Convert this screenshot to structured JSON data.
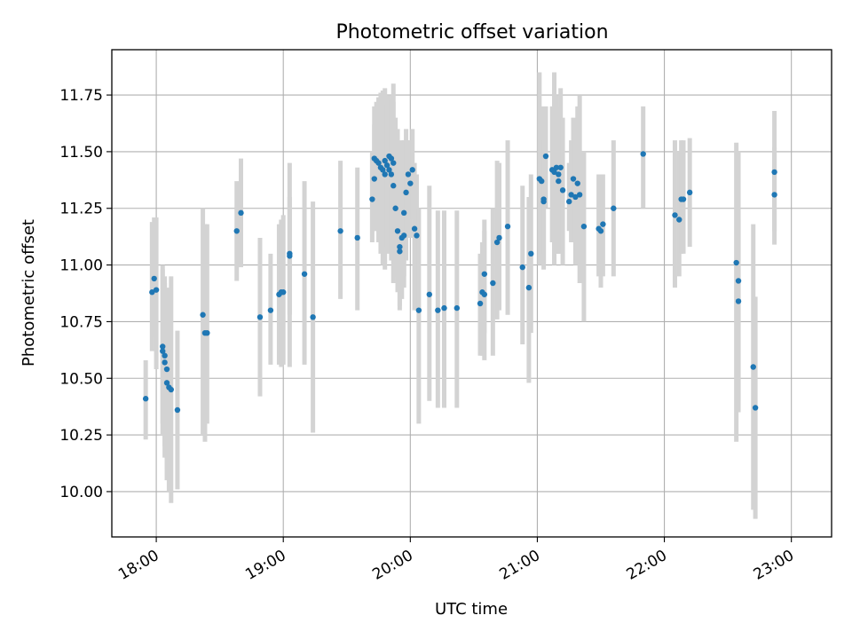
{
  "chart_data": {
    "type": "scatter",
    "title": "Photometric offset variation",
    "xlabel": "UTC time",
    "ylabel": "Photometric offset",
    "x_unit": "UTC",
    "xlim": [
      "17:39",
      "23:19"
    ],
    "ylim": [
      9.8,
      11.95
    ],
    "xticks": [
      "18:00",
      "19:00",
      "20:00",
      "21:00",
      "22:00",
      "23:00"
    ],
    "yticks": [
      10.0,
      10.25,
      10.5,
      10.75,
      11.0,
      11.25,
      11.5,
      11.75
    ],
    "ytick_labels": [
      "10.00",
      "10.25",
      "10.50",
      "10.75",
      "11.00",
      "11.25",
      "11.50",
      "11.75"
    ],
    "grid": true,
    "colors": {
      "point": "#1f77b4",
      "errorbar": "#d3d3d3"
    },
    "series": [
      {
        "points": [
          [
            "17:55",
            10.41,
            10.58,
            10.23
          ],
          [
            "17:58",
            10.88,
            11.19,
            10.62
          ],
          [
            "17:59",
            10.94,
            11.21,
            10.68
          ],
          [
            "18:00",
            10.89,
            11.21,
            10.54
          ],
          [
            "18:03",
            10.64,
            11.0,
            10.3
          ],
          [
            "18:03",
            10.62,
            10.98,
            10.25
          ],
          [
            "18:04",
            10.6,
            10.95,
            10.2
          ],
          [
            "18:04",
            10.57,
            10.92,
            10.15
          ],
          [
            "18:05",
            10.54,
            10.9,
            10.1
          ],
          [
            "18:05",
            10.48,
            10.85,
            10.05
          ],
          [
            "18:06",
            10.46,
            10.8,
            10.0
          ],
          [
            "18:07",
            10.45,
            10.95,
            9.95
          ],
          [
            "18:10",
            10.36,
            10.71,
            10.01
          ],
          [
            "18:22",
            10.78,
            11.25,
            10.25
          ],
          [
            "18:23",
            10.7,
            11.18,
            10.22
          ],
          [
            "18:24",
            10.7,
            11.18,
            10.3
          ],
          [
            "18:38",
            11.15,
            11.37,
            10.93
          ],
          [
            "18:40",
            11.23,
            11.47,
            10.99
          ],
          [
            "18:49",
            10.77,
            11.12,
            10.42
          ],
          [
            "18:54",
            10.8,
            11.05,
            10.56
          ],
          [
            "18:58",
            10.87,
            11.18,
            10.56
          ],
          [
            "18:59",
            10.88,
            11.2,
            10.55
          ],
          [
            "19:00",
            10.88,
            11.22,
            10.56
          ],
          [
            "19:03",
            11.05,
            11.45,
            10.55
          ],
          [
            "19:03",
            11.04,
            11.3,
            10.78
          ],
          [
            "19:10",
            10.96,
            11.37,
            10.56
          ],
          [
            "19:14",
            10.77,
            11.28,
            10.26
          ],
          [
            "19:27",
            11.15,
            11.46,
            10.85
          ],
          [
            "19:35",
            11.12,
            11.43,
            10.8
          ],
          [
            "19:42",
            11.29,
            11.5,
            11.1
          ],
          [
            "19:43",
            11.38,
            11.62,
            11.15
          ],
          [
            "19:43",
            11.47,
            11.7,
            11.25
          ],
          [
            "19:44",
            11.46,
            11.72,
            11.15
          ],
          [
            "19:45",
            11.45,
            11.74,
            11.1
          ],
          [
            "19:46",
            11.43,
            11.76,
            11.05
          ],
          [
            "19:47",
            11.42,
            11.77,
            11.0
          ],
          [
            "19:48",
            11.4,
            11.78,
            10.98
          ],
          [
            "19:48",
            11.46,
            11.72,
            11.12
          ],
          [
            "19:49",
            11.44,
            11.71,
            11.08
          ],
          [
            "19:50",
            11.42,
            11.7,
            11.05
          ],
          [
            "19:50",
            11.48,
            11.75,
            11.15
          ],
          [
            "19:51",
            11.47,
            11.73,
            11.12
          ],
          [
            "19:51",
            11.4,
            11.7,
            11.02
          ],
          [
            "19:52",
            11.45,
            11.72,
            11.1
          ],
          [
            "19:52",
            11.35,
            11.8,
            10.92
          ],
          [
            "19:53",
            11.25,
            11.65,
            10.95
          ],
          [
            "19:54",
            11.15,
            11.6,
            10.88
          ],
          [
            "19:55",
            11.06,
            11.45,
            10.8
          ],
          [
            "19:55",
            11.08,
            11.5,
            10.82
          ],
          [
            "19:56",
            11.12,
            11.55,
            10.85
          ],
          [
            "19:57",
            11.13,
            11.52,
            10.9
          ],
          [
            "19:57",
            11.23,
            11.55,
            10.95
          ],
          [
            "19:58",
            11.32,
            11.6,
            11.02
          ],
          [
            "19:59",
            11.4,
            11.55,
            11.2
          ],
          [
            "20:00",
            11.36,
            11.55,
            11.12
          ],
          [
            "20:01",
            11.42,
            11.6,
            11.2
          ],
          [
            "20:02",
            11.16,
            11.45,
            10.8
          ],
          [
            "20:03",
            11.13,
            11.4,
            10.8
          ],
          [
            "20:04",
            10.8,
            11.25,
            10.3
          ],
          [
            "20:09",
            10.87,
            11.35,
            10.4
          ],
          [
            "20:13",
            10.8,
            11.24,
            10.37
          ],
          [
            "20:16",
            10.81,
            11.24,
            10.37
          ],
          [
            "20:22",
            10.81,
            11.24,
            10.37
          ],
          [
            "20:33",
            10.83,
            11.05,
            10.6
          ],
          [
            "20:34",
            10.88,
            11.1,
            10.6
          ],
          [
            "20:35",
            10.87,
            11.15,
            10.58
          ],
          [
            "20:35",
            10.96,
            11.2,
            10.7
          ],
          [
            "20:39",
            10.92,
            11.25,
            10.6
          ],
          [
            "20:41",
            11.1,
            11.46,
            10.76
          ],
          [
            "20:42",
            11.12,
            11.45,
            10.8
          ],
          [
            "20:46",
            11.17,
            11.55,
            10.78
          ],
          [
            "20:53",
            10.99,
            11.35,
            10.65
          ],
          [
            "20:56",
            10.9,
            11.3,
            10.48
          ],
          [
            "20:57",
            11.05,
            11.4,
            10.7
          ],
          [
            "21:01",
            11.38,
            11.85,
            11.0
          ],
          [
            "21:02",
            11.37,
            11.7,
            11.05
          ],
          [
            "21:03",
            11.29,
            11.55,
            11.0
          ],
          [
            "21:03",
            11.28,
            11.55,
            10.98
          ],
          [
            "21:04",
            11.48,
            11.7,
            11.25
          ],
          [
            "21:07",
            11.42,
            11.7,
            11.1
          ],
          [
            "21:08",
            11.41,
            11.85,
            11.0
          ],
          [
            "21:09",
            11.43,
            11.75,
            11.1
          ],
          [
            "21:10",
            11.4,
            11.7,
            11.05
          ],
          [
            "21:10",
            11.37,
            11.65,
            11.05
          ],
          [
            "21:11",
            11.43,
            11.78,
            11.05
          ],
          [
            "21:12",
            11.33,
            11.65,
            11.0
          ],
          [
            "21:15",
            11.28,
            11.45,
            11.15
          ],
          [
            "21:16",
            11.31,
            11.55,
            11.1
          ],
          [
            "21:17",
            11.38,
            11.65,
            11.1
          ],
          [
            "21:18",
            11.3,
            11.6,
            11.0
          ],
          [
            "21:19",
            11.36,
            11.7,
            11.0
          ],
          [
            "21:20",
            11.31,
            11.75,
            10.92
          ],
          [
            "21:22",
            11.17,
            11.5,
            10.75
          ],
          [
            "21:29",
            11.16,
            11.4,
            10.95
          ],
          [
            "21:30",
            11.15,
            11.4,
            10.9
          ],
          [
            "21:31",
            11.18,
            11.4,
            10.95
          ],
          [
            "21:36",
            11.25,
            11.55,
            10.95
          ],
          [
            "21:50",
            11.49,
            11.7,
            11.25
          ],
          [
            "22:05",
            11.22,
            11.55,
            10.9
          ],
          [
            "22:07",
            11.2,
            11.5,
            10.95
          ],
          [
            "22:08",
            11.29,
            11.55,
            11.05
          ],
          [
            "22:09",
            11.29,
            11.55,
            11.05
          ],
          [
            "22:12",
            11.32,
            11.56,
            11.08
          ],
          [
            "22:34",
            11.01,
            11.54,
            10.22
          ],
          [
            "22:35",
            10.93,
            11.5,
            10.35
          ],
          [
            "22:35",
            10.84,
            11.2,
            10.4
          ],
          [
            "22:42",
            10.55,
            11.18,
            9.92
          ],
          [
            "22:43",
            10.37,
            10.86,
            9.88
          ],
          [
            "22:52",
            11.31,
            11.52,
            11.09
          ],
          [
            "22:52",
            11.41,
            11.68,
            11.15
          ]
        ]
      }
    ]
  }
}
